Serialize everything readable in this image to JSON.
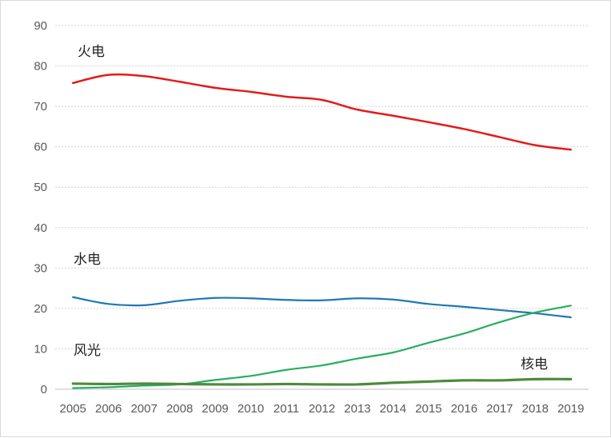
{
  "chart_data": {
    "type": "line",
    "title": "",
    "xlabel": "",
    "ylabel": "",
    "x": [
      "2005",
      "2006",
      "2007",
      "2008",
      "2009",
      "2010",
      "2011",
      "2012",
      "2013",
      "2014",
      "2015",
      "2016",
      "2017",
      "2018",
      "2019"
    ],
    "ylim": [
      0,
      90
    ],
    "yticks": [
      0,
      10,
      20,
      30,
      40,
      50,
      60,
      70,
      80,
      90
    ],
    "grid": "horizontal dotted",
    "legend": "none (direct labels)",
    "series": [
      {
        "name": "火电",
        "color": "#e31a1c",
        "values": [
          75.8,
          77.8,
          77.5,
          76.1,
          74.6,
          73.6,
          72.4,
          71.6,
          69.2,
          67.7,
          66.1,
          64.4,
          62.4,
          60.4,
          59.3
        ]
      },
      {
        "name": "水电",
        "color": "#1f77b4",
        "values": [
          22.8,
          21.1,
          20.8,
          21.9,
          22.6,
          22.5,
          22.1,
          22.0,
          22.5,
          22.2,
          21.1,
          20.4,
          19.6,
          18.8,
          17.8
        ]
      },
      {
        "name": "风光",
        "color": "#27ae60",
        "values": [
          0.3,
          0.5,
          0.9,
          1.2,
          2.3,
          3.3,
          4.8,
          5.9,
          7.6,
          9.1,
          11.5,
          13.8,
          16.6,
          19.0,
          20.7
        ]
      },
      {
        "name": "核电",
        "color": "#4e8a3c",
        "values": [
          1.4,
          1.3,
          1.4,
          1.3,
          1.2,
          1.2,
          1.3,
          1.2,
          1.2,
          1.6,
          1.9,
          2.2,
          2.2,
          2.5,
          2.5
        ]
      }
    ]
  }
}
